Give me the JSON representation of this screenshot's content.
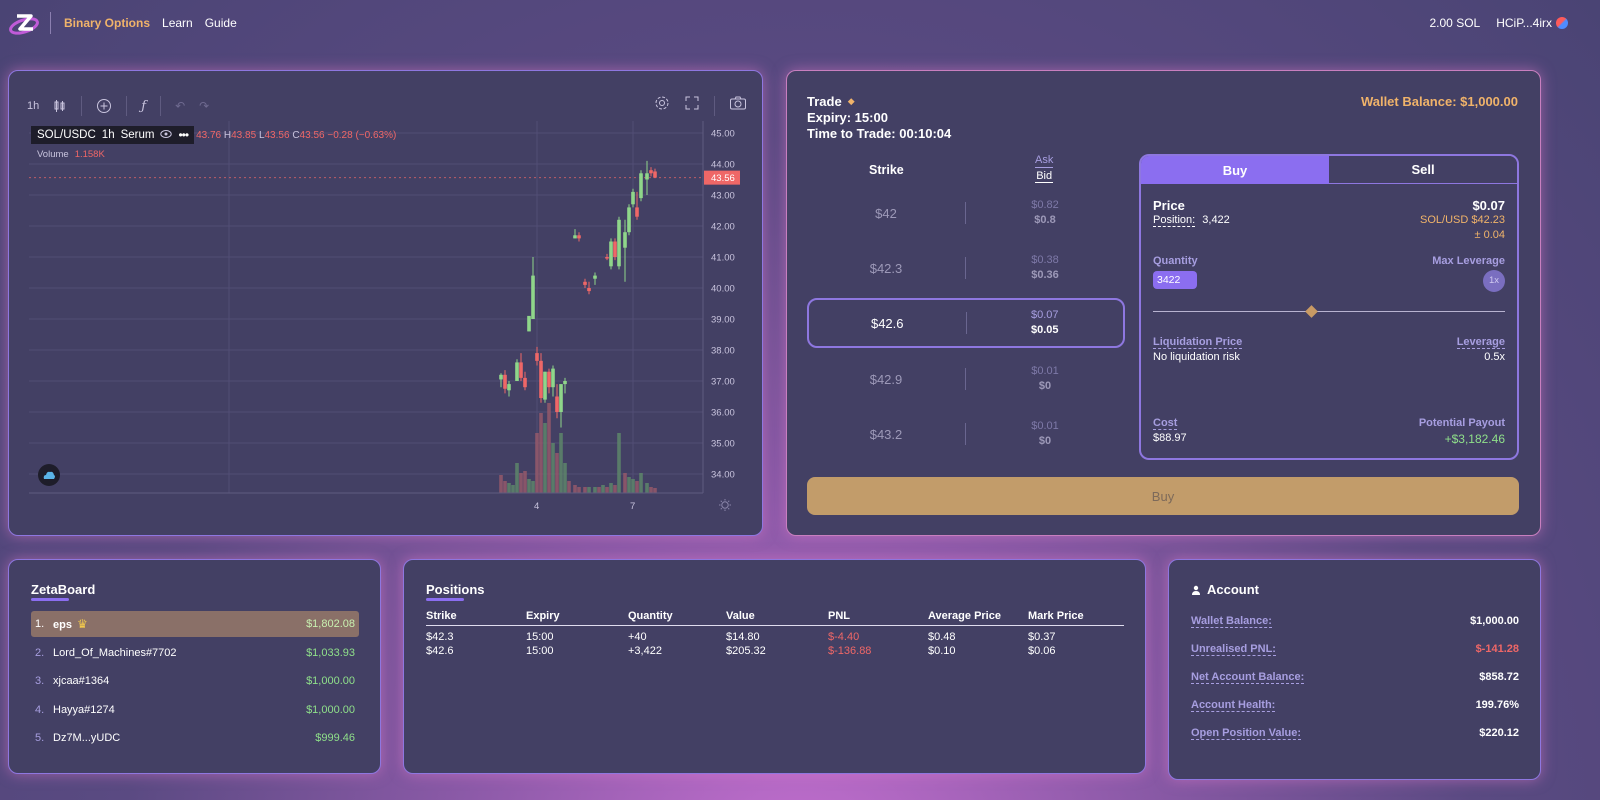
{
  "nav": {
    "items": [
      "Binary Options",
      "Learn",
      "Guide"
    ],
    "sol_balance": "2.00 SOL",
    "wallet_address": "HCiP...4irx"
  },
  "chart": {
    "interval": "1h",
    "symbol": "SOL/USDC",
    "sym_interval": "1h",
    "exchange": "Serum",
    "ohlc": {
      "o": "43.76",
      "h_label": "H",
      "h": "43.85",
      "l_label": "L",
      "l": "43.56",
      "c_label": "C",
      "c": "43.56",
      "chg": "−0.28 (−0.63%)"
    },
    "volume_label": "Volume",
    "volume_value": "1.158K",
    "price_axis": [
      "45.00",
      "44.00",
      "43.00",
      "42.00",
      "41.00",
      "40.00",
      "39.00",
      "38.00",
      "37.00",
      "36.00",
      "35.00",
      "34.00"
    ],
    "last_price": "43.56",
    "time_labels": [
      "4",
      "7"
    ],
    "colors": {
      "up": "#8fd68a",
      "down": "#ef6767"
    }
  },
  "trade": {
    "title": "Trade",
    "expiry": "Expiry: 15:00",
    "time_to_trade": "Time to Trade: 00:10:04",
    "wallet_balance": "Wallet Balance: $1,000.00",
    "strike_header": "Strike",
    "ask_header": "Ask",
    "bid_header": "Bid",
    "strikes": [
      {
        "strike": "$42",
        "ask": "$0.82",
        "bid": "$0.8"
      },
      {
        "strike": "$42.3",
        "ask": "$0.38",
        "bid": "$0.36"
      },
      {
        "strike": "$42.6",
        "ask": "$0.07",
        "bid": "$0.05"
      },
      {
        "strike": "$42.9",
        "ask": "$0.01",
        "bid": "$0"
      },
      {
        "strike": "$43.2",
        "ask": "$0.01",
        "bid": "$0"
      }
    ],
    "order": {
      "tab_buy": "Buy",
      "tab_sell": "Sell",
      "price_label": "Price",
      "position_label": "Position:",
      "position_value": "3,422",
      "price_value": "$0.07",
      "spot_line1": "SOL/USD $42.23",
      "spot_line2": "± 0.04",
      "quantity_label": "Quantity",
      "quantity_value": "3422",
      "max_leverage_label": "Max Leverage",
      "max_leverage_value": "1x",
      "slider_fraction": 0.45,
      "liq_label": "Liquidation Price",
      "liq_value": "No liquidation risk",
      "leverage_label": "Leverage",
      "leverage_value": "0.5x",
      "cost_label": "Cost",
      "cost_value": "$88.97",
      "payout_label": "Potential Payout",
      "payout_value": "+$3,182.46"
    },
    "buy_button": "Buy"
  },
  "zetaboard": {
    "title": "ZetaBoard",
    "rows": [
      {
        "rank": "1.",
        "name": "eps",
        "amount": "$1,802.08"
      },
      {
        "rank": "2.",
        "name": "Lord_Of_Machines#7702",
        "amount": "$1,033.93"
      },
      {
        "rank": "3.",
        "name": "xjcaa#1364",
        "amount": "$1,000.00"
      },
      {
        "rank": "4.",
        "name": "Hayya#1274",
        "amount": "$1,000.00"
      },
      {
        "rank": "5.",
        "name": "Dz7M...yUDC",
        "amount": "$999.46"
      }
    ]
  },
  "positions": {
    "title": "Positions",
    "headers": [
      "Strike",
      "Expiry",
      "Quantity",
      "Value",
      "PNL",
      "Average Price",
      "Mark Price"
    ],
    "rows": [
      [
        "$42.3",
        "15:00",
        "+40",
        "$14.80",
        "$-4.40",
        "$0.48",
        "$0.37"
      ],
      [
        "$42.6",
        "15:00",
        "+3,422",
        "$205.32",
        "$-136.88",
        "$0.10",
        "$0.06"
      ]
    ]
  },
  "account": {
    "title": "Account",
    "rows": [
      {
        "label": "Wallet Balance:",
        "value": "$1,000.00"
      },
      {
        "label": "Unrealised PNL:",
        "value": "$-141.28"
      },
      {
        "label": "Net Account Balance:",
        "value": "$858.72"
      },
      {
        "label": "Account Health:",
        "value": "199.76%"
      },
      {
        "label": "Open Position Value:",
        "value": "$220.12"
      }
    ]
  }
}
